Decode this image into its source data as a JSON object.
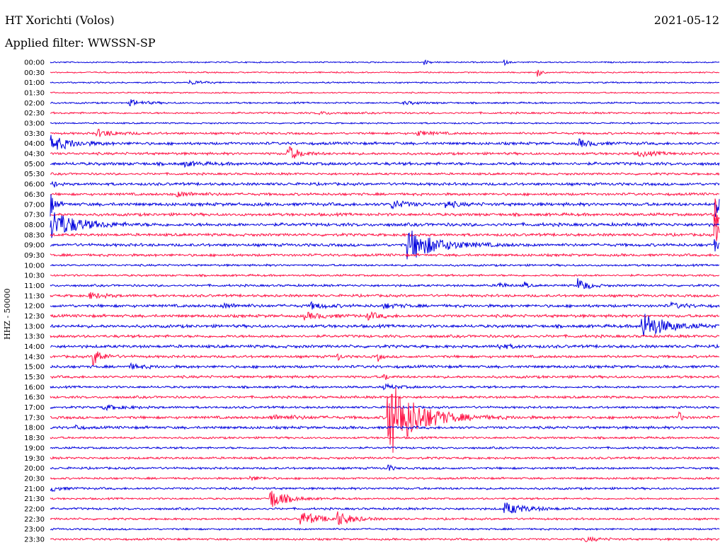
{
  "header": {
    "station": "HT Xorichti (Volos)",
    "date": "2021-05-12",
    "filter": "Applied filter: WWSSN-SP"
  },
  "chart_data": {
    "type": "line",
    "title": "HT Xorichti (Volos)",
    "ylabel": "HHZ - 50000",
    "grid": false,
    "legend": "none",
    "colors": [
      "#0000dd",
      "#ff1144"
    ],
    "row_labels": [
      "00:00",
      "00:30",
      "01:00",
      "01:30",
      "02:00",
      "02:30",
      "03:00",
      "03:30",
      "04:00",
      "04:30",
      "05:00",
      "05:30",
      "06:00",
      "06:30",
      "07:00",
      "07:30",
      "08:00",
      "08:30",
      "09:00",
      "09:30",
      "10:00",
      "10:30",
      "11:00",
      "11:30",
      "12:00",
      "12:30",
      "13:00",
      "13:30",
      "14:00",
      "14:30",
      "15:00",
      "15:30",
      "16:00",
      "16:30",
      "17:00",
      "17:30",
      "18:00",
      "18:30",
      "19:00",
      "19:30",
      "20:00",
      "20:30",
      "21:00",
      "21:30",
      "22:00",
      "22:30",
      "23:00",
      "23:30"
    ],
    "noise": [
      0.8,
      0.8,
      0.9,
      0.8,
      1.0,
      1.1,
      0.9,
      1.3,
      1.6,
      1.5,
      1.8,
      1.3,
      1.6,
      1.5,
      1.9,
      1.7,
      1.9,
      1.6,
      1.7,
      1.5,
      1.2,
      1.2,
      1.3,
      1.5,
      1.7,
      1.7,
      1.8,
      1.6,
      1.7,
      1.5,
      1.6,
      1.5,
      1.3,
      1.4,
      1.3,
      1.6,
      1.6,
      1.2,
      1.2,
      1.3,
      1.3,
      1.2,
      1.3,
      1.1,
      1.3,
      1.2,
      1.1,
      1.2
    ],
    "events": [
      {
        "row": 0,
        "x": 0.56,
        "amp": 3,
        "dur": 0.006
      },
      {
        "row": 0,
        "x": 0.68,
        "amp": 3,
        "dur": 0.004
      },
      {
        "row": 1,
        "x": 0.73,
        "amp": 6,
        "dur": 0.004
      },
      {
        "row": 2,
        "x": 0.21,
        "amp": 3,
        "dur": 0.015
      },
      {
        "row": 4,
        "x": 0.12,
        "amp": 4,
        "dur": 0.02
      },
      {
        "row": 4,
        "x": 0.53,
        "amp": 2,
        "dur": 0.02
      },
      {
        "row": 5,
        "x": 0.4,
        "amp": 2,
        "dur": 0.02
      },
      {
        "row": 7,
        "x": 0.07,
        "amp": 5,
        "dur": 0.025
      },
      {
        "row": 7,
        "x": 0.55,
        "amp": 3,
        "dur": 0.02
      },
      {
        "row": 8,
        "x": 0.0,
        "amp": 11,
        "dur": 0.03
      },
      {
        "row": 8,
        "x": 0.79,
        "amp": 5,
        "dur": 0.02
      },
      {
        "row": 9,
        "x": 0.355,
        "amp": 11,
        "dur": 0.015
      },
      {
        "row": 9,
        "x": 0.88,
        "amp": 3,
        "dur": 0.03
      },
      {
        "row": 10,
        "x": 0.2,
        "amp": 3,
        "dur": 0.02
      },
      {
        "row": 12,
        "x": 0.005,
        "amp": 4,
        "dur": 0.005
      },
      {
        "row": 13,
        "x": 0.19,
        "amp": 3,
        "dur": 0.03
      },
      {
        "row": 14,
        "x": 0.0,
        "amp": 17,
        "dur": 0.006
      },
      {
        "row": 14,
        "x": 0.51,
        "amp": 6,
        "dur": 0.02
      },
      {
        "row": 14,
        "x": 0.59,
        "amp": 5,
        "dur": 0.015
      },
      {
        "row": 14,
        "x": 0.994,
        "amp": 18,
        "dur": 0.006
      },
      {
        "row": 15,
        "x": 0.994,
        "amp": 26,
        "dur": 0.008
      },
      {
        "row": 16,
        "x": 0.0,
        "amp": 22,
        "dur": 0.035
      },
      {
        "row": 17,
        "x": 0.994,
        "amp": 22,
        "dur": 0.008
      },
      {
        "row": 18,
        "x": 0.535,
        "amp": 22,
        "dur": 0.04
      },
      {
        "row": 18,
        "x": 0.994,
        "amp": 8,
        "dur": 0.006
      },
      {
        "row": 22,
        "x": 0.67,
        "amp": 6,
        "dur": 0.008
      },
      {
        "row": 22,
        "x": 0.71,
        "amp": 5,
        "dur": 0.004
      },
      {
        "row": 22,
        "x": 0.79,
        "amp": 10,
        "dur": 0.012
      },
      {
        "row": 23,
        "x": 0.06,
        "amp": 4,
        "dur": 0.02
      },
      {
        "row": 24,
        "x": 0.26,
        "amp": 3,
        "dur": 0.02
      },
      {
        "row": 24,
        "x": 0.39,
        "amp": 4,
        "dur": 0.02
      },
      {
        "row": 24,
        "x": 0.5,
        "amp": 3,
        "dur": 0.02
      },
      {
        "row": 24,
        "x": 0.93,
        "amp": 3,
        "dur": 0.02
      },
      {
        "row": 25,
        "x": 0.38,
        "amp": 4,
        "dur": 0.03
      },
      {
        "row": 25,
        "x": 0.475,
        "amp": 5,
        "dur": 0.015
      },
      {
        "row": 26,
        "x": 0.885,
        "amp": 20,
        "dur": 0.03
      },
      {
        "row": 28,
        "x": 0.67,
        "amp": 3,
        "dur": 0.02
      },
      {
        "row": 29,
        "x": 0.065,
        "amp": 12,
        "dur": 0.012
      },
      {
        "row": 29,
        "x": 0.43,
        "amp": 5,
        "dur": 0.004
      },
      {
        "row": 29,
        "x": 0.49,
        "amp": 6,
        "dur": 0.004
      },
      {
        "row": 30,
        "x": 0.12,
        "amp": 3,
        "dur": 0.02
      },
      {
        "row": 31,
        "x": 0.5,
        "amp": 6,
        "dur": 0.004
      },
      {
        "row": 32,
        "x": 0.5,
        "amp": 3,
        "dur": 0.02
      },
      {
        "row": 34,
        "x": 0.08,
        "amp": 3,
        "dur": 0.03
      },
      {
        "row": 35,
        "x": 0.505,
        "amp": 58,
        "dur": 0.04
      },
      {
        "row": 35,
        "x": 0.33,
        "amp": 3,
        "dur": 0.04
      },
      {
        "row": 35,
        "x": 0.94,
        "amp": 8,
        "dur": 0.004
      },
      {
        "row": 36,
        "x": 0.04,
        "amp": 4,
        "dur": 0.004
      },
      {
        "row": 40,
        "x": 0.505,
        "amp": 8,
        "dur": 0.004
      },
      {
        "row": 41,
        "x": 0.3,
        "amp": 3,
        "dur": 0.015
      },
      {
        "row": 42,
        "x": 0.0,
        "amp": 4,
        "dur": 0.015
      },
      {
        "row": 43,
        "x": 0.33,
        "amp": 14,
        "dur": 0.02
      },
      {
        "row": 44,
        "x": 0.68,
        "amp": 8,
        "dur": 0.03
      },
      {
        "row": 45,
        "x": 0.375,
        "amp": 10,
        "dur": 0.025
      },
      {
        "row": 45,
        "x": 0.43,
        "amp": 9,
        "dur": 0.02
      },
      {
        "row": 47,
        "x": 0.8,
        "amp": 3,
        "dur": 0.02
      }
    ]
  }
}
